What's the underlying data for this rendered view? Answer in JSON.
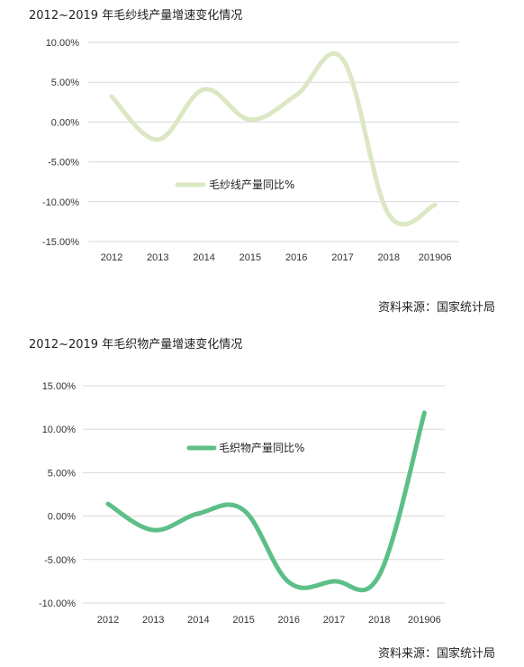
{
  "charts": [
    {
      "title": "2012~2019 年毛纱线产量增速变化情况",
      "source": "资料来源：国家统计局",
      "color": "#dbe8c3"
    },
    {
      "title": "2012~2019 年毛织物产量增速变化情况",
      "source": "资料来源：国家统计局",
      "color": "#5dbf88"
    }
  ],
  "chart_data": [
    {
      "type": "line",
      "title": "2012~2019 年毛纱线产量增速变化情况",
      "categories": [
        "2012",
        "2013",
        "2014",
        "2015",
        "2016",
        "2017",
        "2018",
        "201906"
      ],
      "series": [
        {
          "name": "毛纱线产量同比%",
          "values": [
            3.2,
            -2.2,
            4.1,
            0.3,
            3.4,
            7.9,
            -11.6,
            -10.4
          ]
        }
      ],
      "yticks": [
        "10.00%",
        "5.00%",
        "0.00%",
        "-5.00%",
        "-10.00%",
        "-15.00%"
      ],
      "ylim": [
        -15,
        10
      ],
      "legend": "center-left",
      "grid": true
    },
    {
      "type": "line",
      "title": "2012~2019 年毛织物产量增速变化情况",
      "categories": [
        "2012",
        "2013",
        "2014",
        "2015",
        "2016",
        "2017",
        "2018",
        "201906"
      ],
      "series": [
        {
          "name": "毛织物产量同比%",
          "values": [
            1.4,
            -1.6,
            0.3,
            0.7,
            -7.6,
            -7.5,
            -6.8,
            11.9
          ]
        }
      ],
      "yticks": [
        "15.00%",
        "10.00%",
        "5.00%",
        "0.00%",
        "-5.00%",
        "-10.00%"
      ],
      "ylim": [
        -10,
        15
      ],
      "legend": "top-center",
      "grid": true
    }
  ]
}
